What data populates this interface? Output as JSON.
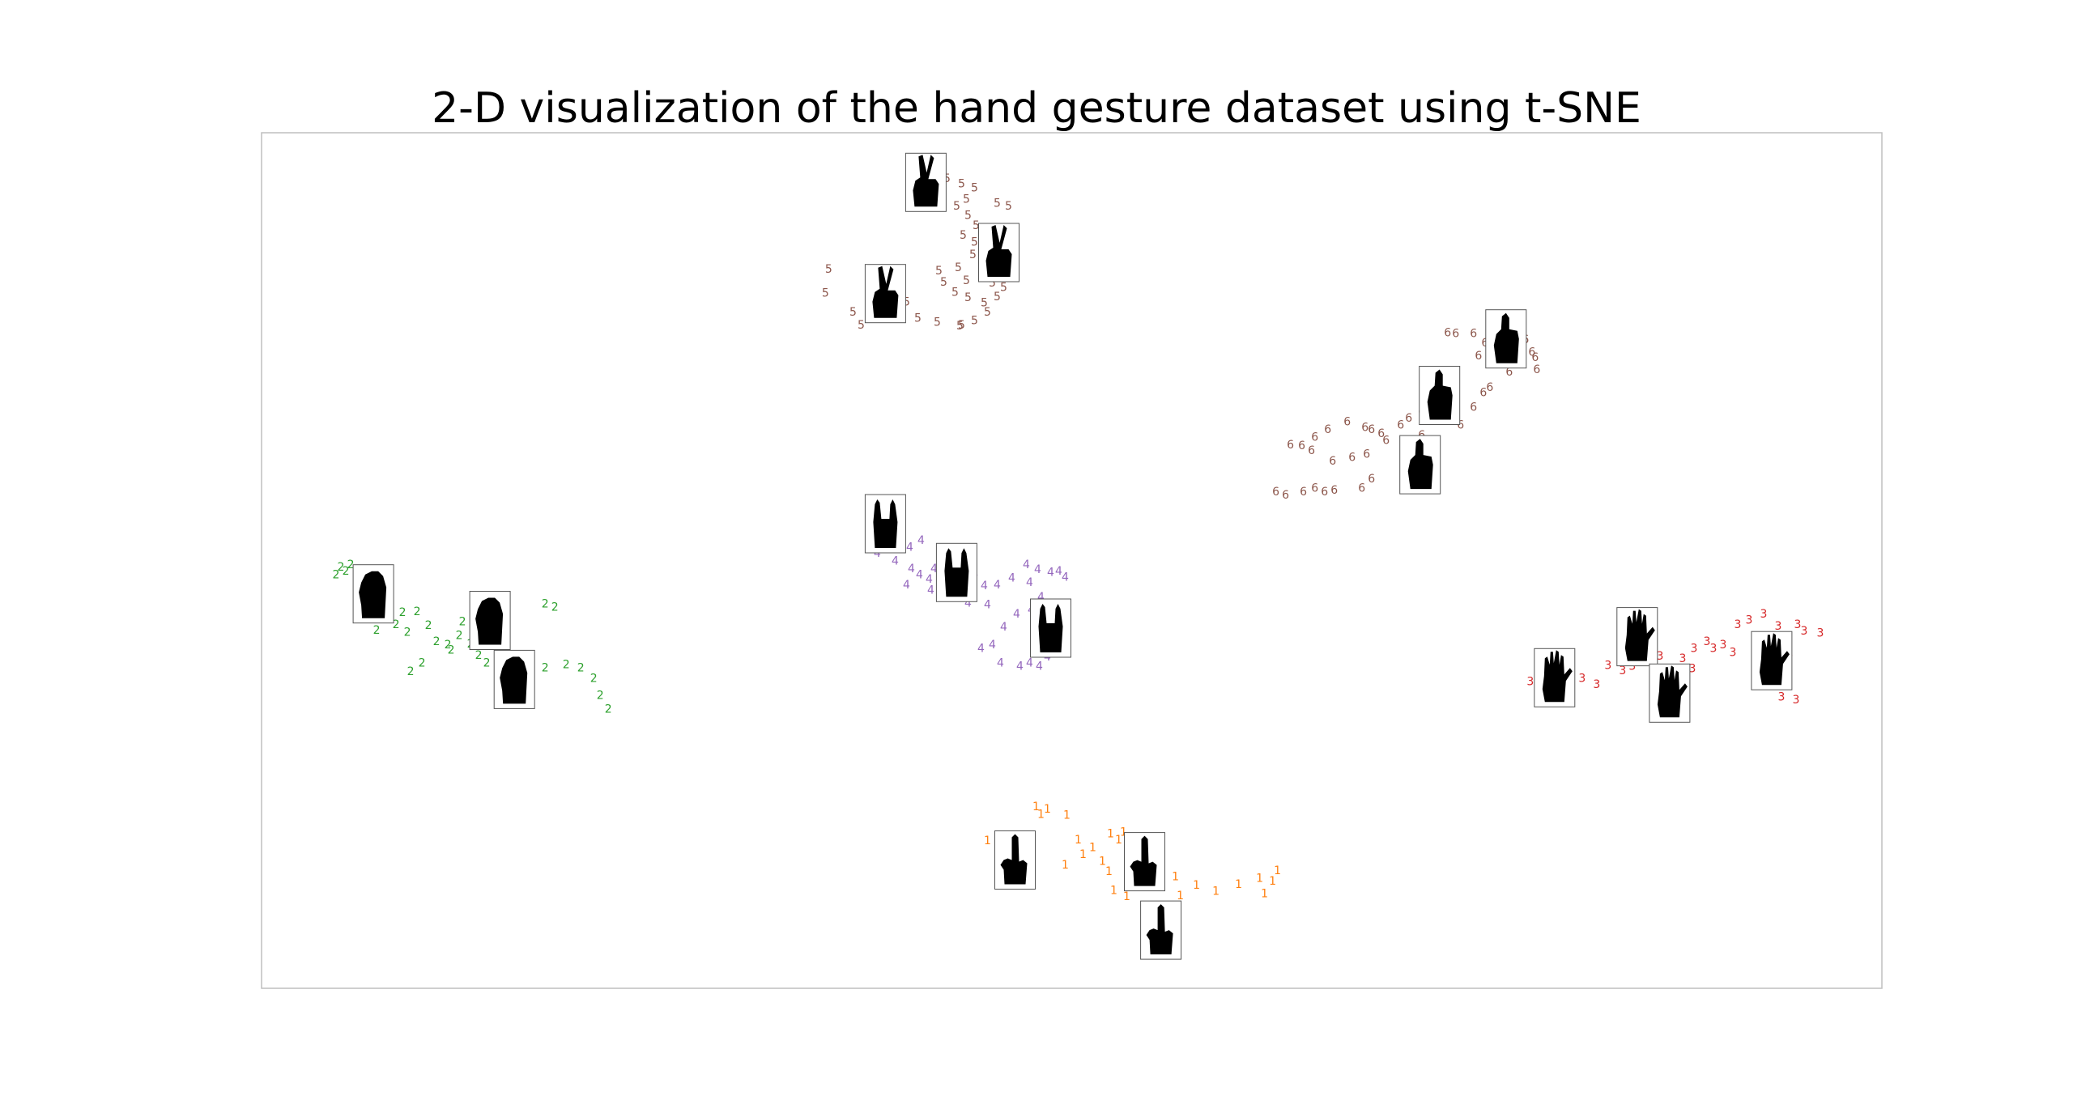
{
  "chart_data": {
    "type": "scatter",
    "title": "2-D visualization of the hand gesture dataset using t-SNE",
    "xlabel": "",
    "ylabel": "",
    "grid": false,
    "axes_ticks": false,
    "xlim": [
      0,
      100
    ],
    "ylim": [
      0,
      100
    ],
    "marker_style": "digit-labels",
    "series": [
      {
        "label": "1",
        "color": "#ff7f0e",
        "thumbnail_icon": "pointing-hand-icon",
        "points": [
          [
            47.8,
            21.2
          ],
          [
            48.5,
            20.9
          ],
          [
            48.1,
            20.3
          ],
          [
            49.7,
            20.2
          ],
          [
            50.4,
            17.3
          ],
          [
            51.3,
            16.4
          ],
          [
            50.7,
            15.6
          ],
          [
            52.4,
            18.0
          ],
          [
            52.9,
            17.3
          ],
          [
            53.2,
            18.2
          ],
          [
            51.9,
            14.8
          ],
          [
            49.6,
            14.4
          ],
          [
            45.6,
            14.3
          ],
          [
            44.8,
            17.2
          ],
          [
            46.2,
            15.8
          ],
          [
            52.3,
            13.6
          ],
          [
            52.6,
            11.4
          ],
          [
            53.4,
            10.7
          ],
          [
            54.0,
            11.9
          ],
          [
            55.0,
            12.1
          ],
          [
            56.4,
            13.0
          ],
          [
            57.7,
            12.0
          ],
          [
            58.9,
            11.3
          ],
          [
            60.3,
            12.1
          ],
          [
            61.6,
            12.8
          ],
          [
            62.4,
            12.5
          ],
          [
            62.7,
            13.7
          ],
          [
            61.9,
            11.0
          ],
          [
            56.7,
            10.8
          ],
          [
            54.7,
            14.1
          ]
        ],
        "thumbnails": [
          [
            46.5,
            15.0
          ],
          [
            54.5,
            14.8
          ],
          [
            55.5,
            6.8
          ]
        ]
      },
      {
        "label": "2",
        "color": "#2ca02c",
        "thumbnail_icon": "fist-icon",
        "points": [
          [
            4.9,
            49.2
          ],
          [
            4.6,
            48.3
          ],
          [
            5.5,
            49.5
          ],
          [
            5.2,
            48.7
          ],
          [
            6.1,
            48.0
          ],
          [
            6.8,
            47.1
          ],
          [
            7.5,
            46.3
          ],
          [
            7.9,
            44.8
          ],
          [
            8.7,
            43.9
          ],
          [
            8.3,
            42.5
          ],
          [
            9.0,
            41.6
          ],
          [
            9.6,
            44.0
          ],
          [
            10.3,
            42.4
          ],
          [
            10.8,
            40.5
          ],
          [
            11.5,
            40.1
          ],
          [
            12.2,
            41.2
          ],
          [
            11.7,
            39.5
          ],
          [
            12.9,
            40.2
          ],
          [
            13.4,
            38.9
          ],
          [
            14.0,
            40.3
          ],
          [
            14.9,
            39.0
          ],
          [
            15.7,
            38.5
          ],
          [
            14.8,
            45.2
          ],
          [
            17.5,
            44.9
          ],
          [
            18.1,
            44.5
          ],
          [
            13.9,
            38.0
          ],
          [
            15.2,
            37.5
          ],
          [
            16.1,
            36.8
          ],
          [
            17.5,
            37.4
          ],
          [
            18.8,
            37.8
          ],
          [
            19.7,
            37.4
          ],
          [
            20.5,
            36.2
          ],
          [
            20.9,
            34.2
          ],
          [
            21.4,
            32.6
          ],
          [
            7.1,
            41.8
          ],
          [
            9.2,
            37.0
          ],
          [
            9.9,
            38.0
          ],
          [
            12.4,
            42.8
          ]
        ],
        "thumbnails": [
          [
            6.9,
            46.1
          ],
          [
            14.1,
            43.0
          ],
          [
            15.6,
            36.1
          ]
        ]
      },
      {
        "label": "3",
        "color": "#d62728",
        "thumbnail_icon": "open-palm-icon",
        "points": [
          [
            79.6,
            37.3
          ],
          [
            80.5,
            35.3
          ],
          [
            81.5,
            36.2
          ],
          [
            82.4,
            35.5
          ],
          [
            83.1,
            37.7
          ],
          [
            84.0,
            37.1
          ],
          [
            84.8,
            38.4
          ],
          [
            85.6,
            38.8
          ],
          [
            86.3,
            38.8
          ],
          [
            87.7,
            38.5
          ],
          [
            88.4,
            39.7
          ],
          [
            89.2,
            40.5
          ],
          [
            90.2,
            40.1
          ],
          [
            91.1,
            42.5
          ],
          [
            91.8,
            43.0
          ],
          [
            92.7,
            43.7
          ],
          [
            93.6,
            42.3
          ],
          [
            94.8,
            42.5
          ],
          [
            95.2,
            41.7
          ],
          [
            96.2,
            41.5
          ],
          [
            89.6,
            39.7
          ],
          [
            90.8,
            39.2
          ],
          [
            87.2,
            37.3
          ],
          [
            88.3,
            37.3
          ],
          [
            86.7,
            34.6
          ],
          [
            93.8,
            34.0
          ],
          [
            94.7,
            33.7
          ],
          [
            78.3,
            35.8
          ],
          [
            79.0,
            34.8
          ],
          [
            80.2,
            35.6
          ],
          [
            84.6,
            37.6
          ],
          [
            94.3,
            39.0
          ]
        ],
        "thumbnails": [
          [
            79.8,
            36.3
          ],
          [
            84.9,
            41.1
          ],
          [
            86.9,
            34.5
          ],
          [
            93.2,
            38.3
          ]
        ]
      },
      {
        "label": "4",
        "color": "#9467bd",
        "thumbnail_icon": "rock-sign-hand-icon",
        "points": [
          [
            38.5,
            52.6
          ],
          [
            38.0,
            50.8
          ],
          [
            39.1,
            49.9
          ],
          [
            40.0,
            51.5
          ],
          [
            40.7,
            52.3
          ],
          [
            40.1,
            49.0
          ],
          [
            40.6,
            48.3
          ],
          [
            41.2,
            47.8
          ],
          [
            39.8,
            47.1
          ],
          [
            41.5,
            49.0
          ],
          [
            42.8,
            48.6
          ],
          [
            44.0,
            48.4
          ],
          [
            44.6,
            47.0
          ],
          [
            45.4,
            47.1
          ],
          [
            46.3,
            47.9
          ],
          [
            47.4,
            47.4
          ],
          [
            47.2,
            49.5
          ],
          [
            47.9,
            48.9
          ],
          [
            48.7,
            48.6
          ],
          [
            49.2,
            48.7
          ],
          [
            49.6,
            48.0
          ],
          [
            48.1,
            45.7
          ],
          [
            47.5,
            44.2
          ],
          [
            46.6,
            43.7
          ],
          [
            45.8,
            42.2
          ],
          [
            45.1,
            40.1
          ],
          [
            44.4,
            39.7
          ],
          [
            45.6,
            38.0
          ],
          [
            46.8,
            37.6
          ],
          [
            47.4,
            38.0
          ],
          [
            48.0,
            37.6
          ],
          [
            48.5,
            38.7
          ],
          [
            48.3,
            40.8
          ],
          [
            42.0,
            46.0
          ],
          [
            41.3,
            46.5
          ],
          [
            43.6,
            45.0
          ],
          [
            44.8,
            44.8
          ]
        ],
        "thumbnails": [
          [
            38.5,
            54.3
          ],
          [
            42.9,
            48.6
          ],
          [
            48.7,
            42.1
          ]
        ]
      },
      {
        "label": "5",
        "color": "#8c564b",
        "thumbnail_icon": "peace-sign-hand-icon",
        "points": [
          [
            41.5,
            95.0
          ],
          [
            42.3,
            94.6
          ],
          [
            43.2,
            94.0
          ],
          [
            44.0,
            93.5
          ],
          [
            43.5,
            92.2
          ],
          [
            42.9,
            91.4
          ],
          [
            43.6,
            90.3
          ],
          [
            44.1,
            89.1
          ],
          [
            43.3,
            88.0
          ],
          [
            44.0,
            87.2
          ],
          [
            44.6,
            86.4
          ],
          [
            43.9,
            85.7
          ],
          [
            44.4,
            84.5
          ],
          [
            43.0,
            84.2
          ],
          [
            44.4,
            83.2
          ],
          [
            45.1,
            82.4
          ],
          [
            45.8,
            81.9
          ],
          [
            45.4,
            80.8
          ],
          [
            44.6,
            80.1
          ],
          [
            43.6,
            80.7
          ],
          [
            42.8,
            81.3
          ],
          [
            43.5,
            82.7
          ],
          [
            41.8,
            83.8
          ],
          [
            42.1,
            82.5
          ],
          [
            39.8,
            80.2
          ],
          [
            38.3,
            78.2
          ],
          [
            37.0,
            77.5
          ],
          [
            40.5,
            78.3
          ],
          [
            41.7,
            77.8
          ],
          [
            43.1,
            77.4
          ],
          [
            44.0,
            78.0
          ],
          [
            44.8,
            79.0
          ],
          [
            43.2,
            77.5
          ],
          [
            35.0,
            84.0
          ],
          [
            34.8,
            81.2
          ],
          [
            36.5,
            79.0
          ],
          [
            45.4,
            91.7
          ],
          [
            46.1,
            91.4
          ],
          [
            45.3,
            86.8
          ],
          [
            46.6,
            83.9
          ]
        ],
        "thumbnails": [
          [
            41.0,
            94.2
          ],
          [
            45.5,
            86.0
          ],
          [
            38.5,
            81.2
          ]
        ]
      },
      {
        "label": "6",
        "color": "#8c564b",
        "thumbnail_icon": "thumbs-up-hand-icon",
        "points": [
          [
            73.2,
            76.6
          ],
          [
            73.7,
            76.5
          ],
          [
            74.8,
            76.5
          ],
          [
            75.5,
            75.4
          ],
          [
            76.1,
            76.6
          ],
          [
            76.6,
            74.3
          ],
          [
            77.4,
            76.2
          ],
          [
            78.0,
            75.8
          ],
          [
            78.6,
            73.7
          ],
          [
            78.4,
            74.3
          ],
          [
            78.7,
            72.3
          ],
          [
            77.0,
            72.0
          ],
          [
            75.8,
            70.2
          ],
          [
            75.4,
            69.6
          ],
          [
            74.8,
            67.9
          ],
          [
            74.0,
            65.8
          ],
          [
            72.9,
            66.7
          ],
          [
            72.2,
            66.4
          ],
          [
            71.6,
            67.3
          ],
          [
            70.8,
            66.6
          ],
          [
            70.3,
            65.8
          ],
          [
            69.1,
            64.8
          ],
          [
            68.1,
            65.5
          ],
          [
            67.0,
            66.2
          ],
          [
            65.8,
            65.3
          ],
          [
            65.0,
            64.4
          ],
          [
            64.2,
            63.4
          ],
          [
            64.8,
            62.8
          ],
          [
            66.1,
            61.6
          ],
          [
            67.3,
            62.0
          ],
          [
            68.2,
            62.4
          ],
          [
            68.5,
            65.3
          ],
          [
            69.4,
            64.0
          ],
          [
            70.6,
            60.0
          ],
          [
            67.9,
            58.4
          ],
          [
            66.2,
            58.2
          ],
          [
            65.6,
            58.0
          ],
          [
            65.0,
            58.4
          ],
          [
            64.3,
            58.0
          ],
          [
            63.2,
            57.6
          ],
          [
            62.6,
            58.0
          ],
          [
            71.6,
            64.6
          ],
          [
            63.5,
            63.5
          ],
          [
            72.5,
            69.6
          ],
          [
            75.1,
            73.9
          ],
          [
            68.5,
            59.5
          ]
        ],
        "thumbnails": [
          [
            76.8,
            75.9
          ],
          [
            72.7,
            69.3
          ],
          [
            71.5,
            61.2
          ]
        ]
      }
    ]
  }
}
